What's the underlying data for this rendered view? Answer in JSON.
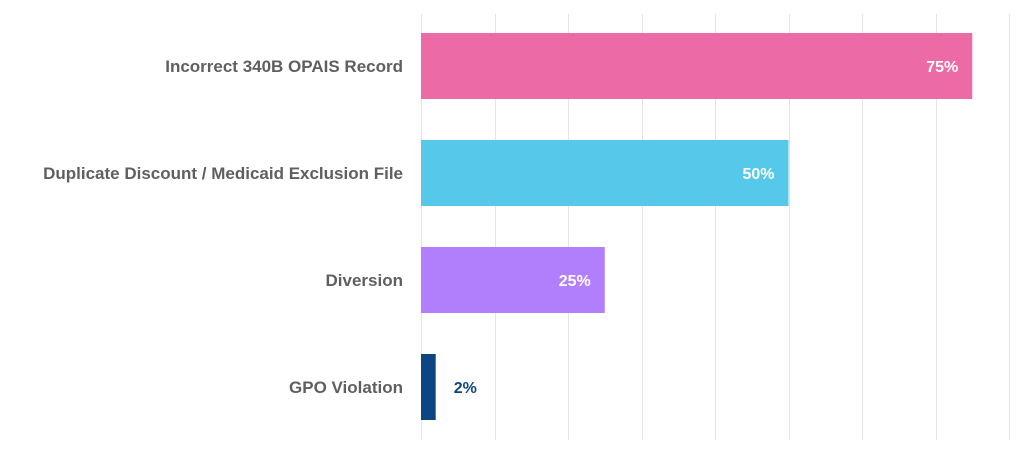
{
  "chart_data": {
    "type": "bar",
    "orientation": "horizontal",
    "categories": [
      "Incorrect 340B OPAIS Record",
      "Duplicate Discount / Medicaid Exclusion File",
      "Diversion",
      "GPO Violation"
    ],
    "values": [
      75,
      50,
      25,
      2
    ],
    "value_labels": [
      "75%",
      "50%",
      "25%",
      "2%"
    ],
    "bar_colors": [
      "#ec6aa5",
      "#56c9ea",
      "#b17ffb",
      "#0d4583"
    ],
    "value_label_colors": [
      "#ffffff",
      "#ffffff",
      "#ffffff",
      "#0d4583"
    ],
    "xlim": [
      0,
      80
    ],
    "grid_step": 10,
    "grid": true,
    "legend": "none",
    "title": "",
    "xlabel": "",
    "ylabel": ""
  }
}
